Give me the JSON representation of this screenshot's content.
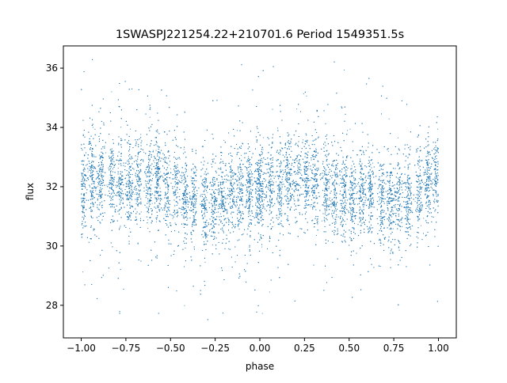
{
  "chart_data": {
    "type": "scatter",
    "title": "1SWASPJ221254.22+210701.6 Period 1549351.5s",
    "xlabel": "phase",
    "ylabel": "flux",
    "xlim": [
      -1.1,
      1.1
    ],
    "ylim": [
      26.9,
      36.75
    ],
    "xticks": [
      -1.0,
      -0.75,
      -0.5,
      -0.25,
      0.0,
      0.25,
      0.5,
      0.75,
      1.0
    ],
    "xtick_labels": [
      "−1.00",
      "−0.75",
      "−0.50",
      "−0.25",
      "0.00",
      "0.25",
      "0.50",
      "0.75",
      "1.00"
    ],
    "yticks": [
      28,
      30,
      32,
      34,
      36
    ],
    "ytick_labels": [
      "28",
      "30",
      "32",
      "34",
      "36"
    ],
    "grid": false,
    "legend": "none",
    "marker_color": "#1f77b4",
    "series": [
      {
        "x_range": [
          -1.0,
          1.0
        ],
        "y_center": 31.9,
        "y_core_range": [
          30.3,
          33.5
        ],
        "y_outlier_range": [
          27.4,
          36.4
        ],
        "point_count": 16000,
        "phase_clusters": [
          -0.99,
          -0.94,
          -0.89,
          -0.83,
          -0.78,
          -0.73,
          -0.68,
          -0.62,
          -0.57,
          -0.52,
          -0.47,
          -0.42,
          -0.37,
          -0.31,
          -0.26,
          -0.21,
          -0.16,
          -0.11,
          -0.06,
          -0.01,
          0.01,
          0.06,
          0.11,
          0.16,
          0.21,
          0.26,
          0.31,
          0.37,
          0.42,
          0.47,
          0.52,
          0.57,
          0.62,
          0.68,
          0.73,
          0.78,
          0.83,
          0.89,
          0.94,
          0.99
        ]
      }
    ]
  }
}
